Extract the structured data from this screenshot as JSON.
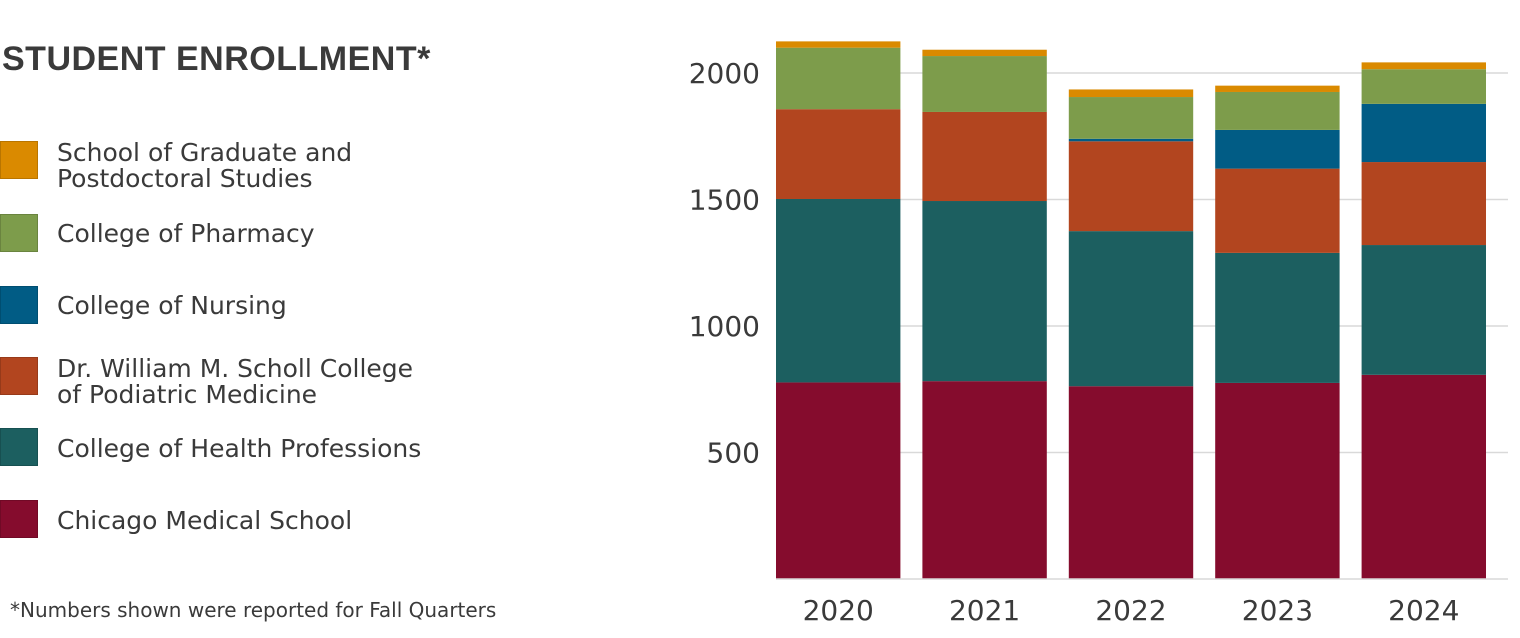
{
  "chart_data": {
    "type": "bar",
    "stacked": true,
    "title": "STUDENT ENROLLMENT*",
    "footnote": "*Numbers shown were reported for Fall Quarters",
    "categories": [
      "2020",
      "2021",
      "2022",
      "2023",
      "2024"
    ],
    "yticks": [
      500,
      1000,
      1500,
      2000
    ],
    "ylim": [
      0,
      2140
    ],
    "grid": true,
    "series": [
      {
        "name": "Chicago Medical School",
        "color": "#850c2d",
        "values": [
          777,
          782,
          762,
          775,
          807
        ]
      },
      {
        "name": "College of Health Professions",
        "color": "#1c5f60",
        "values": [
          725,
          712,
          613,
          514,
          513
        ]
      },
      {
        "name": "Dr. William M. Scholl College of Podiatric Medicine",
        "color": "#b2451f",
        "values": [
          355,
          352,
          355,
          333,
          328
        ]
      },
      {
        "name": "College of Nursing",
        "color": "#015c85",
        "values": [
          0,
          0,
          10,
          153,
          230
        ]
      },
      {
        "name": "College of Pharmacy",
        "color": "#7d9c4b",
        "values": [
          243,
          221,
          165,
          150,
          137
        ]
      },
      {
        "name": "School of Graduate and Postdoctoral Studies",
        "color": "#da8a00",
        "values": [
          25,
          25,
          30,
          25,
          27
        ]
      }
    ]
  },
  "legend": [
    {
      "lines": [
        "School of Graduate and",
        "Postdoctoral Studies"
      ],
      "color": "#da8a00",
      "name": "legend-graduate-studies"
    },
    {
      "lines": [
        "College of Pharmacy"
      ],
      "color": "#7d9c4b",
      "name": "legend-pharmacy"
    },
    {
      "lines": [
        "College of Nursing"
      ],
      "color": "#015c85",
      "name": "legend-nursing"
    },
    {
      "lines": [
        "Dr. William M. Scholl College",
        "of Podiatric Medicine"
      ],
      "color": "#b2451f",
      "name": "legend-podiatric"
    },
    {
      "lines": [
        "College of Health Professions"
      ],
      "color": "#1c5f60",
      "name": "legend-health-professions"
    },
    {
      "lines": [
        "Chicago Medical School"
      ],
      "color": "#850c2d",
      "name": "legend-medical-school"
    }
  ]
}
